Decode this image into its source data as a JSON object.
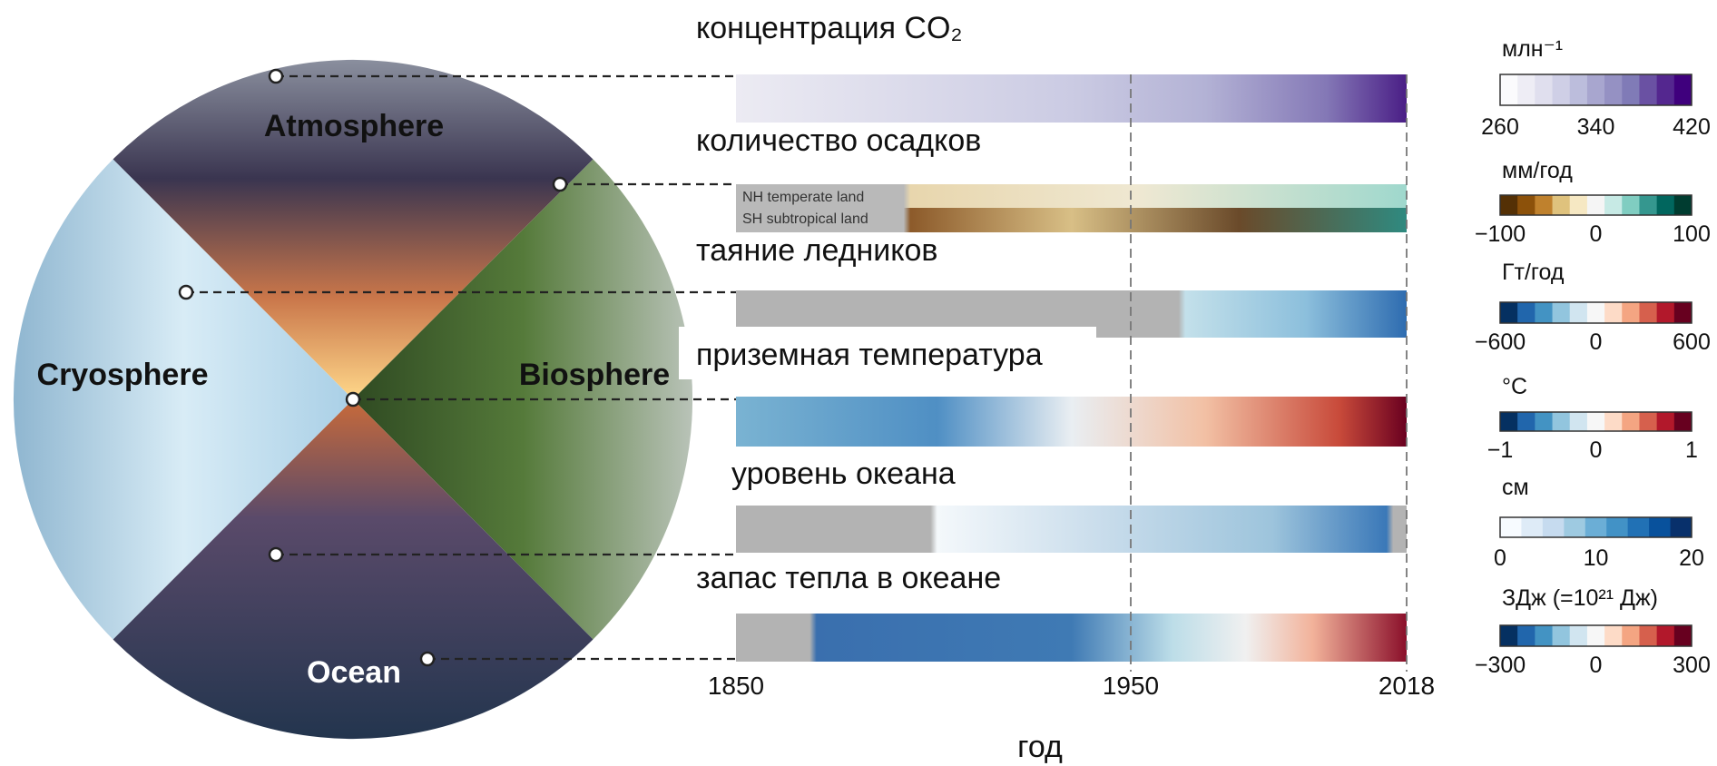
{
  "title": "концентрация CO₂",
  "spheres": [
    "Atmosphere",
    "Cryosphere",
    "Biosphere",
    "Ocean"
  ],
  "rows": [
    {
      "label": "концентрация CO₂",
      "unit": "млн⁻¹",
      "ticks": [
        "260",
        "340",
        "420"
      ],
      "colors": [
        "#fbfbfd",
        "#eeedf5",
        "#e0dfee",
        "#cfcfe6",
        "#bcbddc",
        "#a8a6cf",
        "#9591c3",
        "#807bb7",
        "#6a51a3",
        "#54278f",
        "#3f007d"
      ]
    },
    {
      "label": "количество осадков",
      "unit": "мм/год",
      "ticks": [
        "−100",
        "0",
        "100"
      ],
      "colors": [
        "#543005",
        "#8c510a",
        "#bf812d",
        "#dfc27d",
        "#f6e8c3",
        "#f5f5f5",
        "#c7eae5",
        "#80cdc1",
        "#35978f",
        "#01665e",
        "#003c30"
      ]
    },
    {
      "label": "таяние ледников",
      "unit": "Гт/год",
      "ticks": [
        "−600",
        "0",
        "600"
      ],
      "colors": [
        "#053061",
        "#2166ac",
        "#4393c3",
        "#92c5de",
        "#d1e5f0",
        "#f7f7f7",
        "#fddbc7",
        "#f4a582",
        "#d6604d",
        "#b2182b",
        "#67001f"
      ]
    },
    {
      "label": "приземная температура",
      "unit": "°C",
      "ticks": [
        "−1",
        "0",
        "1"
      ],
      "colors": [
        "#053061",
        "#2166ac",
        "#4393c3",
        "#92c5de",
        "#d1e5f0",
        "#f7f7f7",
        "#fddbc7",
        "#f4a582",
        "#d6604d",
        "#b2182b",
        "#67001f"
      ]
    },
    {
      "label": "уровень океана",
      "unit": "см",
      "ticks": [
        "0",
        "10",
        "20"
      ],
      "colors": [
        "#f7fbff",
        "#deebf7",
        "#c6dbef",
        "#9ecae1",
        "#6baed6",
        "#4292c6",
        "#2171b5",
        "#08519c",
        "#08306b"
      ]
    },
    {
      "label": "запас тепла в океане",
      "unit": "ЗДж (=10²¹ Дж)",
      "ticks": [
        "−300",
        "0",
        "300"
      ],
      "colors": [
        "#053061",
        "#2166ac",
        "#4393c3",
        "#92c5de",
        "#d1e5f0",
        "#f7f7f7",
        "#fddbc7",
        "#f4a582",
        "#d6604d",
        "#b2182b",
        "#67001f"
      ]
    }
  ],
  "precip_land_labels": [
    "NH temperate land",
    "SH subtropical land"
  ],
  "x_axis": {
    "ticks": [
      "1850",
      "1950",
      "2018"
    ],
    "label": "год"
  }
}
